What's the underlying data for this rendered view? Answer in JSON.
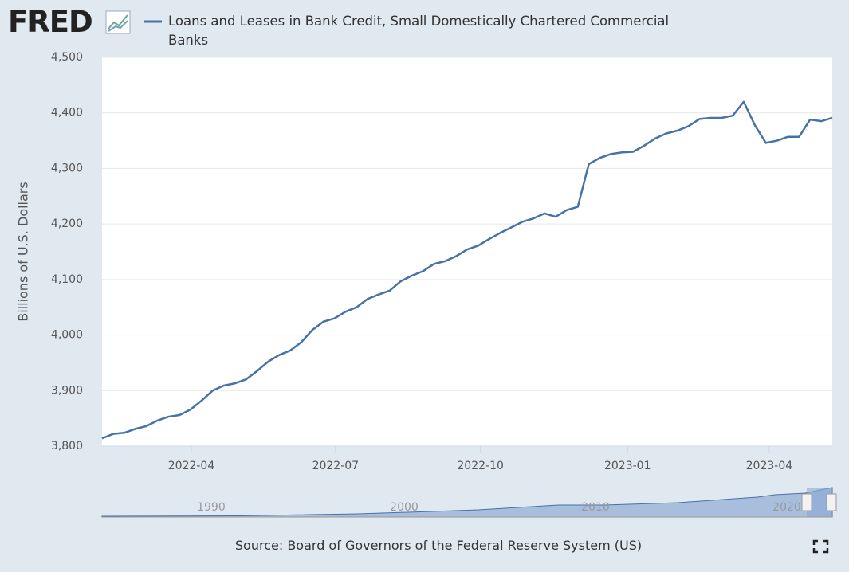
{
  "logo": "FRED",
  "chart_data": {
    "type": "line",
    "title": "Loans and Leases in Bank Credit, Small Domestically Chartered Commercial Banks",
    "y_label": "Billions of U.S. Dollars",
    "source": "Source: Board of Governors of the Federal Reserve System (US)",
    "series": [
      {
        "name": "Loans and Leases in Bank Credit, Small Domestically Chartered Commercial Banks",
        "color": "#4572a7",
        "values": [
          3814,
          3822,
          3824,
          3831,
          3836,
          3846,
          3853,
          3856,
          3866,
          3882,
          3900,
          3909,
          3913,
          3920,
          3935,
          3952,
          3964,
          3972,
          3987,
          4009,
          4024,
          4030,
          4042,
          4050,
          4065,
          4073,
          4080,
          4097,
          4107,
          4115,
          4128,
          4133,
          4142,
          4154,
          4161,
          4173,
          4184,
          4194,
          4204,
          4210,
          4219,
          4213,
          4225,
          4231,
          4308,
          4319,
          4326,
          4329,
          4330,
          4341,
          4354,
          4363,
          4368,
          4376,
          4389,
          4391,
          4391,
          4395,
          4420,
          4378,
          4346,
          4350,
          4357,
          4357,
          4388,
          4385,
          4391
        ]
      }
    ],
    "xlim": [
      0,
      66
    ],
    "xticks": [
      {
        "value": 8.07,
        "label": "2022-04"
      },
      {
        "value": 21.1,
        "label": "2022-07"
      },
      {
        "value": 34.2,
        "label": "2022-10"
      },
      {
        "value": 47.5,
        "label": "2023-01"
      },
      {
        "value": 60.3,
        "label": "2023-04"
      }
    ],
    "ylim": [
      3800,
      4500
    ],
    "yticks": [
      {
        "value": 3800,
        "label": "3,800"
      },
      {
        "value": 3900,
        "label": "3,900"
      },
      {
        "value": 4000,
        "label": "4,000"
      },
      {
        "value": 4100,
        "label": "4,100"
      },
      {
        "value": 4200,
        "label": "4,200"
      },
      {
        "value": 4300,
        "label": "4,300"
      },
      {
        "value": 4400,
        "label": "4,400"
      },
      {
        "value": 4500,
        "label": "4,500"
      }
    ],
    "grid": true,
    "navigator_labels": [
      "1990",
      "2000",
      "2010",
      "2020"
    ]
  }
}
